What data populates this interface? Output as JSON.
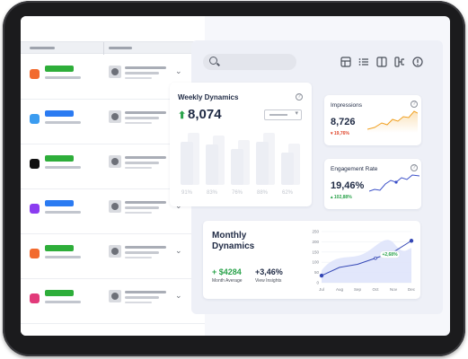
{
  "weekly": {
    "title": "Weekly Dynamics",
    "value": "8,074",
    "bars": [
      {
        "label": "91%",
        "level": 0.78
      },
      {
        "label": "83%",
        "level": 0.72
      },
      {
        "label": "76%",
        "level": 0.64
      },
      {
        "label": "88%",
        "level": 0.78
      },
      {
        "label": "62%",
        "level": 0.58
      }
    ]
  },
  "impressions": {
    "title": "Impressions",
    "value": "8,726",
    "change": "▾ 19,76%",
    "change_color": "#e0452a"
  },
  "engagement": {
    "title": "Engagement Rate",
    "value": "19,46%",
    "change": "▴ 102,88%",
    "change_color": "#29a24a"
  },
  "monthly": {
    "title": "Monthly Dynamics",
    "stat1_value": "+ $4284",
    "stat1_label": "Month Average",
    "stat2_value": "+3,46%",
    "stat2_label": "View Insights",
    "badge": "+2,68%"
  },
  "list_rows": [
    {
      "icon_color": "#f26a2e",
      "tag_color": "#2eae3a",
      "chevron": "⌄"
    },
    {
      "icon_color": "#3b9cf0",
      "tag_color": "#2b7bf2",
      "chevron": "⌄"
    },
    {
      "icon_color": "#111111",
      "tag_color": "#2eae3a",
      "chevron": "⌄"
    },
    {
      "icon_color": "#8b3cf0",
      "tag_color": "#2b7bf2",
      "chevron": "⌄"
    },
    {
      "icon_color": "#f26a2e",
      "tag_color": "#2eae3a",
      "chevron": "⌄"
    },
    {
      "icon_color": "#e23a7a",
      "tag_color": "#2eae3a",
      "chevron": "⌄"
    }
  ],
  "chart_data": [
    {
      "type": "line",
      "x": [
        "Jul",
        "Aug",
        "Sep",
        "Oct",
        "Nov",
        "Dec"
      ],
      "series": [
        {
          "values": [
            35,
            75,
            90,
            120,
            150,
            205
          ]
        }
      ],
      "ylim": [
        0,
        250
      ],
      "yticks": [
        0,
        50,
        100,
        150,
        200,
        250
      ],
      "grid": true
    }
  ],
  "colors": {
    "accent": "#2b7bf2",
    "positive": "#29a24a",
    "negative": "#e0452a",
    "impressions_line": "#f0a020",
    "engagement_line": "#3a4fc8",
    "monthly_line": "#3447b5"
  }
}
